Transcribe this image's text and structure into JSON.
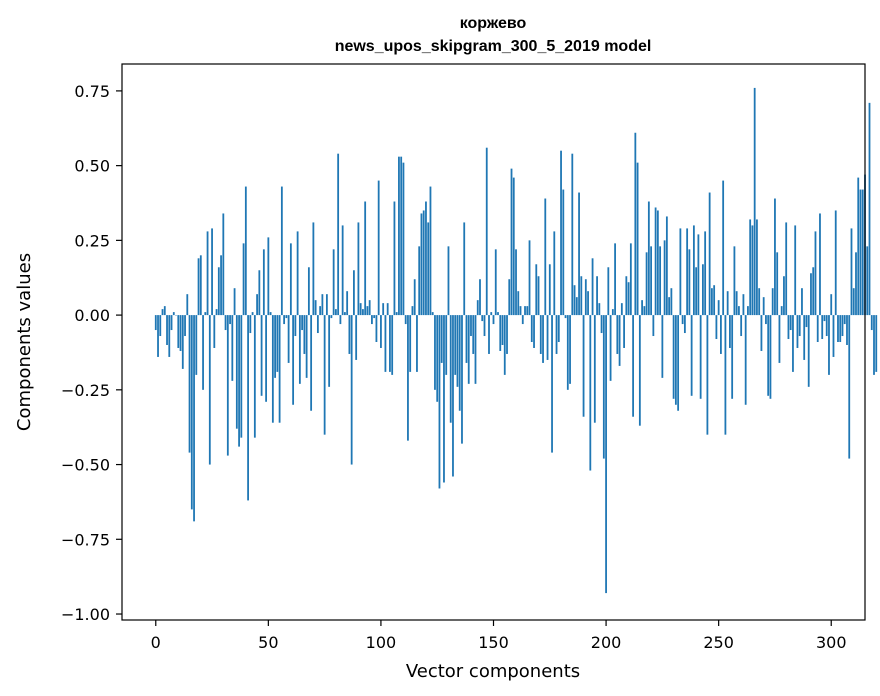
{
  "chart_data": {
    "type": "bar",
    "title_line1": "коржево",
    "title_line2": "news_upos_skipgram_300_5_2019 model",
    "xlabel": "Vector components",
    "ylabel": "Components values",
    "xlim": [
      -15,
      315
    ],
    "ylim": [
      -1.02,
      0.84
    ],
    "xticks": [
      0,
      50,
      100,
      150,
      200,
      250,
      300
    ],
    "xtick_labels": [
      "0",
      "50",
      "100",
      "150",
      "200",
      "250",
      "300"
    ],
    "yticks": [
      -1.0,
      -0.75,
      -0.5,
      -0.25,
      0.0,
      0.25,
      0.5,
      0.75
    ],
    "ytick_labels": [
      "−1.00",
      "−0.75",
      "−0.50",
      "−0.25",
      "0.00",
      "0.25",
      "0.50",
      "0.75"
    ],
    "bar_color": "#1f77b4",
    "values": [
      -0.05,
      -0.14,
      -0.07,
      0.02,
      0.03,
      -0.1,
      -0.14,
      -0.05,
      0.01,
      0.0,
      -0.11,
      -0.12,
      -0.18,
      -0.07,
      0.07,
      -0.46,
      -0.65,
      -0.69,
      -0.2,
      0.19,
      0.2,
      -0.25,
      0.01,
      0.28,
      -0.5,
      0.29,
      -0.11,
      0.02,
      0.16,
      0.2,
      0.34,
      -0.05,
      -0.47,
      -0.03,
      -0.22,
      0.09,
      -0.38,
      -0.44,
      -0.41,
      0.24,
      0.43,
      -0.62,
      -0.06,
      0.01,
      -0.41,
      0.07,
      0.15,
      -0.27,
      0.22,
      -0.29,
      0.26,
      0.01,
      -0.36,
      -0.21,
      -0.19,
      -0.36,
      0.43,
      -0.03,
      -0.01,
      -0.16,
      0.24,
      -0.3,
      -0.07,
      0.28,
      -0.23,
      -0.05,
      -0.13,
      -0.21,
      0.16,
      -0.32,
      0.31,
      0.05,
      -0.06,
      0.03,
      0.07,
      -0.4,
      0.07,
      -0.24,
      -0.01,
      0.22,
      0.02,
      0.54,
      -0.03,
      0.3,
      0.01,
      0.08,
      -0.13,
      -0.5,
      0.15,
      -0.15,
      0.31,
      0.04,
      0.02,
      0.38,
      0.03,
      0.05,
      -0.03,
      -0.01,
      -0.09,
      0.45,
      -0.11,
      0.04,
      -0.19,
      0.04,
      -0.19,
      -0.2,
      0.38,
      0.01,
      0.53,
      0.53,
      0.51,
      -0.03,
      -0.42,
      -0.19,
      0.03,
      0.12,
      -0.19,
      0.23,
      0.34,
      0.35,
      0.38,
      0.31,
      0.43,
      0.01,
      -0.25,
      -0.29,
      -0.58,
      -0.16,
      -0.56,
      -0.2,
      0.23,
      -0.36,
      -0.54,
      -0.2,
      -0.24,
      -0.32,
      -0.43,
      0.31,
      -0.16,
      -0.23,
      -0.07,
      -0.13,
      -0.23,
      0.05,
      0.12,
      -0.02,
      -0.07,
      0.56,
      -0.13,
      0.01,
      -0.03,
      0.22,
      0.01,
      -0.12,
      -0.1,
      -0.2,
      -0.13,
      0.12,
      0.49,
      0.46,
      0.22,
      0.08,
      0.03,
      -0.03,
      0.03,
      0.03,
      0.25,
      -0.09,
      -0.11,
      0.17,
      0.13,
      -0.13,
      -0.16,
      0.39,
      -0.15,
      0.17,
      -0.46,
      0.28,
      -0.13,
      -0.09,
      0.55,
      0.42,
      -0.01,
      -0.25,
      -0.23,
      0.54,
      0.1,
      0.06,
      0.41,
      0.13,
      -0.34,
      0.12,
      0.08,
      -0.52,
      0.19,
      -0.36,
      0.13,
      0.04,
      -0.06,
      -0.48,
      -0.93,
      0.16,
      -0.22,
      0.02,
      0.24,
      -0.13,
      -0.17,
      0.04,
      -0.11,
      0.13,
      0.11,
      0.24,
      -0.34,
      0.61,
      0.51,
      -0.37,
      0.05,
      0.03,
      0.21,
      0.38,
      0.23,
      -0.07,
      0.36,
      0.35,
      0.23,
      -0.21,
      0.25,
      0.33,
      0.06,
      0.09,
      -0.28,
      -0.3,
      -0.32,
      0.29,
      -0.03,
      -0.06,
      0.29,
      0.22,
      -0.27,
      0.3,
      0.16,
      0.27,
      -0.28,
      0.17,
      0.28,
      -0.4,
      0.41,
      0.09,
      0.1,
      -0.08,
      0.05,
      -0.13,
      0.45,
      -0.4,
      0.08,
      -0.11,
      -0.28,
      0.23,
      0.08,
      0.03,
      -0.07,
      0.07,
      -0.3,
      0.03,
      0.32,
      0.3,
      0.76,
      0.32,
      0.09,
      -0.12,
      0.06,
      -0.03,
      -0.27,
      -0.28,
      0.09,
      0.39,
      0.21,
      -0.16,
      0.03,
      0.13,
      0.31,
      -0.08,
      -0.05,
      -0.19,
      0.3,
      -0.11,
      -0.07,
      0.09,
      -0.15,
      -0.04,
      -0.24,
      0.14,
      0.16,
      0.28,
      -0.09,
      0.34,
      -0.08,
      -0.02,
      -0.07,
      -0.2,
      0.07,
      -0.14,
      0.35,
      -0.09,
      -0.09,
      -0.07,
      -0.03,
      -0.1,
      -0.48,
      0.29,
      0.09,
      0.21,
      0.46,
      0.42,
      0.42,
      0.47,
      0.23,
      0.71,
      -0.05,
      -0.2,
      -0.19
    ]
  }
}
